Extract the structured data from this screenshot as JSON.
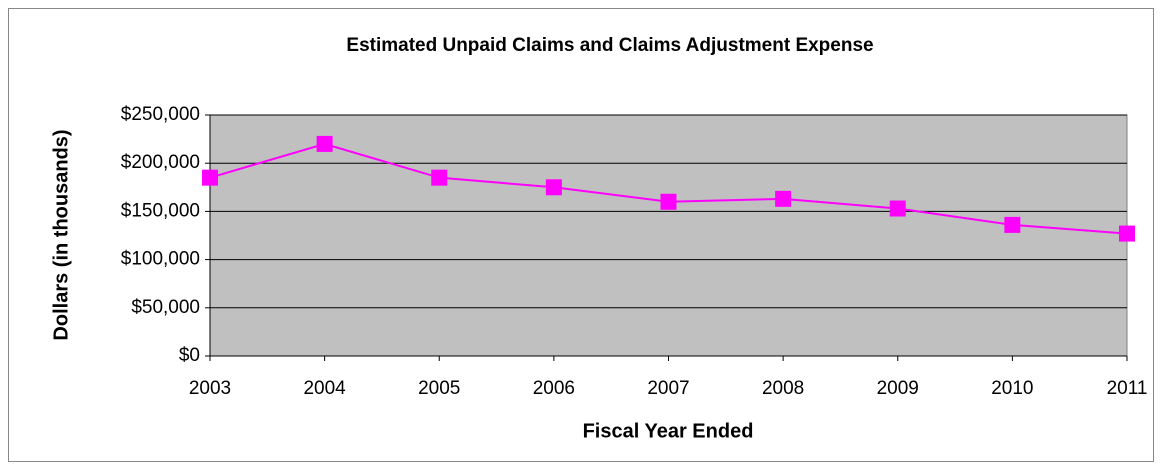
{
  "chart_data": {
    "type": "line",
    "title": "Estimated Unpaid Claims and Claims Adjustment Expense",
    "x_label": "Fiscal Year Ended",
    "y_label": "Dollars (in thousands)",
    "categories": [
      "2003",
      "2004",
      "2005",
      "2006",
      "2007",
      "2008",
      "2009",
      "2010",
      "2011"
    ],
    "series": [
      {
        "name": "Estimated Unpaid Claims and Claims Adjustment Expense",
        "color": "#ff00ff",
        "values": [
          185000,
          220000,
          185000,
          175000,
          160000,
          163000,
          153000,
          136000,
          127000
        ]
      }
    ],
    "ylim": [
      0,
      250000
    ],
    "yticks": [
      {
        "value": 0,
        "label": "$0"
      },
      {
        "value": 50000,
        "label": "$50,000"
      },
      {
        "value": 100000,
        "label": "$100,000"
      },
      {
        "value": 150000,
        "label": "$150,000"
      },
      {
        "value": 200000,
        "label": "$200,000"
      },
      {
        "value": 250000,
        "label": "$250,000"
      }
    ],
    "grid": true,
    "plot_background": "#c0c0c0"
  }
}
